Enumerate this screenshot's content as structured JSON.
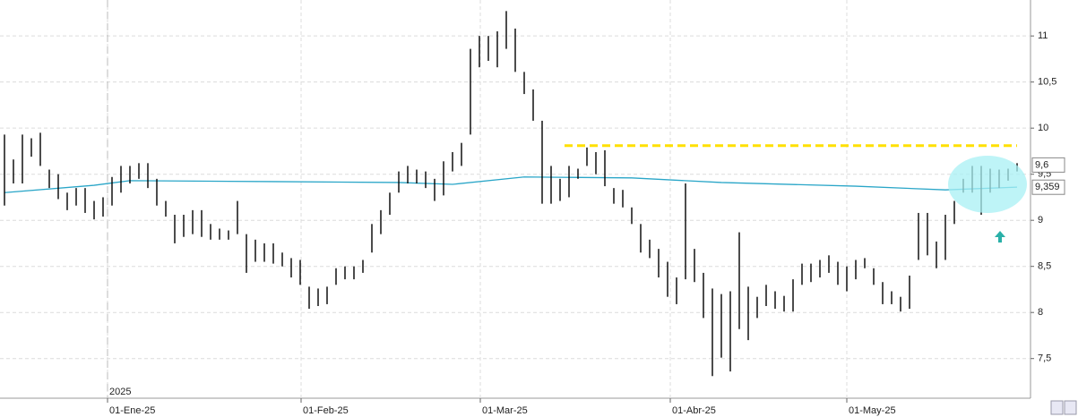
{
  "chart_data": {
    "type": "ohlc",
    "xlim": [
      -0.5,
      114.5
    ],
    "ylim": [
      7.07,
      11.39
    ],
    "yticks": [
      {
        "value": 7.5,
        "label": "7,5"
      },
      8,
      {
        "value": 8.5,
        "label": "8,5"
      },
      9,
      {
        "value": 9.5,
        "label": "9,5"
      },
      10,
      {
        "value": 10.5,
        "label": "10,5"
      },
      11
    ],
    "xticks": [
      {
        "value": 11.5,
        "label": "01-Ene-25"
      },
      {
        "value": 33.1,
        "label": "01-Feb-25"
      },
      {
        "value": 53.1,
        "label": "01-Mar-25"
      },
      {
        "value": 74.3,
        "label": "01-Abr-25"
      },
      {
        "value": 94,
        "label": "01-May-25"
      }
    ],
    "year_marker": {
      "value": 11.5,
      "label": "2025"
    },
    "grid": true,
    "color": "#000000",
    "x": [
      0,
      1,
      2,
      3,
      4,
      5,
      6,
      7,
      8,
      9,
      10,
      11,
      12,
      13,
      14,
      15,
      16,
      17,
      18,
      19,
      20,
      21,
      22,
      23,
      24,
      25,
      26,
      27,
      28,
      29,
      30,
      31,
      32,
      33,
      34,
      35,
      36,
      37,
      38,
      39,
      40,
      41,
      42,
      43,
      44,
      45,
      46,
      47,
      48,
      49,
      50,
      51,
      52,
      53,
      54,
      55,
      56,
      57,
      58,
      59,
      60,
      61,
      62,
      63,
      64,
      65,
      66,
      67,
      68,
      69,
      70,
      71,
      72,
      73,
      74,
      75,
      76,
      77,
      78,
      79,
      80,
      81,
      82,
      83,
      84,
      85,
      86,
      87,
      88,
      89,
      90,
      91,
      92,
      93,
      94,
      95,
      96,
      97,
      98,
      99,
      100,
      101,
      102,
      103,
      104,
      105,
      106,
      107,
      108,
      109,
      110,
      111,
      112,
      113
    ],
    "high": [
      9.93,
      9.66,
      9.93,
      9.89,
      9.95,
      9.55,
      9.5,
      9.3,
      9.35,
      9.35,
      9.21,
      9.25,
      9.47,
      9.59,
      9.59,
      9.62,
      9.62,
      9.45,
      9.21,
      9.06,
      9.06,
      9.11,
      9.11,
      8.96,
      8.91,
      8.89,
      9.21,
      8.85,
      8.79,
      8.75,
      8.75,
      8.65,
      8.59,
      8.57,
      8.28,
      8.26,
      8.28,
      8.48,
      8.5,
      8.5,
      8.57,
      8.96,
      9.11,
      9.3,
      9.53,
      9.59,
      9.55,
      9.53,
      9.45,
      9.64,
      9.74,
      9.84,
      10.86,
      11,
      11,
      11.05,
      11.27,
      11.08,
      10.61,
      10.42,
      10.08,
      9.59,
      9.45,
      9.59,
      9.56,
      9.79,
      9.74,
      9.76,
      9.35,
      9.33,
      9.14,
      8.96,
      8.79,
      8.69,
      8.55,
      8.38,
      9.4,
      8.69,
      8.43,
      8.26,
      8.2,
      8.23,
      8.87,
      8.28,
      8.17,
      8.3,
      8.23,
      8.18,
      8.36,
      8.53,
      8.53,
      8.57,
      8.62,
      8.55,
      8.5,
      8.57,
      8.59,
      8.48,
      8.33,
      8.23,
      8.17,
      8.4,
      9.08,
      9.08,
      8.77,
      9.06,
      9.21,
      9.45,
      9.59,
      9.59,
      9.56,
      9.55,
      9.56,
      9.62
    ],
    "low": [
      9.16,
      9.4,
      9.4,
      9.69,
      9.59,
      9.35,
      9.23,
      9.11,
      9.16,
      9.08,
      9.01,
      9.04,
      9.16,
      9.3,
      9.4,
      9.45,
      9.35,
      9.16,
      9.04,
      8.75,
      8.82,
      8.85,
      8.82,
      8.79,
      8.79,
      8.79,
      8.85,
      8.43,
      8.55,
      8.55,
      8.53,
      8.5,
      8.38,
      8.3,
      8.04,
      8.07,
      8.09,
      8.3,
      8.36,
      8.36,
      8.43,
      8.65,
      8.85,
      9.06,
      9.3,
      9.4,
      9.4,
      9.35,
      9.21,
      9.27,
      9.53,
      9.59,
      9.93,
      10.66,
      10.73,
      10.66,
      10.86,
      10.61,
      10.37,
      10.08,
      9.18,
      9.18,
      9.21,
      9.25,
      9.45,
      9.59,
      9.5,
      9.37,
      9.18,
      9.14,
      8.96,
      8.65,
      8.59,
      8.38,
      8.17,
      8.09,
      8.36,
      8.33,
      7.94,
      7.31,
      7.51,
      7.36,
      7.82,
      7.7,
      7.94,
      8.07,
      8.04,
      8.01,
      8.01,
      8.3,
      8.33,
      8.38,
      8.43,
      8.3,
      8.23,
      8.36,
      8.48,
      8.3,
      8.09,
      8.09,
      8.01,
      8.04,
      8.57,
      8.62,
      8.48,
      8.57,
      8.96,
      9.3,
      9.3,
      9.06,
      9.3,
      9.35,
      9.43,
      9.53
    ],
    "overlays": [
      {
        "type": "line",
        "color": "#2aa6c8",
        "x": [
          0,
          10,
          14,
          30,
          44,
          50,
          58,
          70,
          80,
          95,
          105,
          113
        ],
        "values": [
          9.3,
          9.38,
          9.43,
          9.42,
          9.41,
          9.39,
          9.47,
          9.46,
          9.41,
          9.37,
          9.33,
          9.36
        ]
      }
    ],
    "resistance": {
      "value": 9.81,
      "x": [
        62.5,
        113
      ],
      "color": "#ffe000"
    },
    "price_labels": [
      {
        "value": 9.6,
        "label": "9,6"
      },
      {
        "value": 9.359,
        "label": "9,359"
      }
    ]
  }
}
